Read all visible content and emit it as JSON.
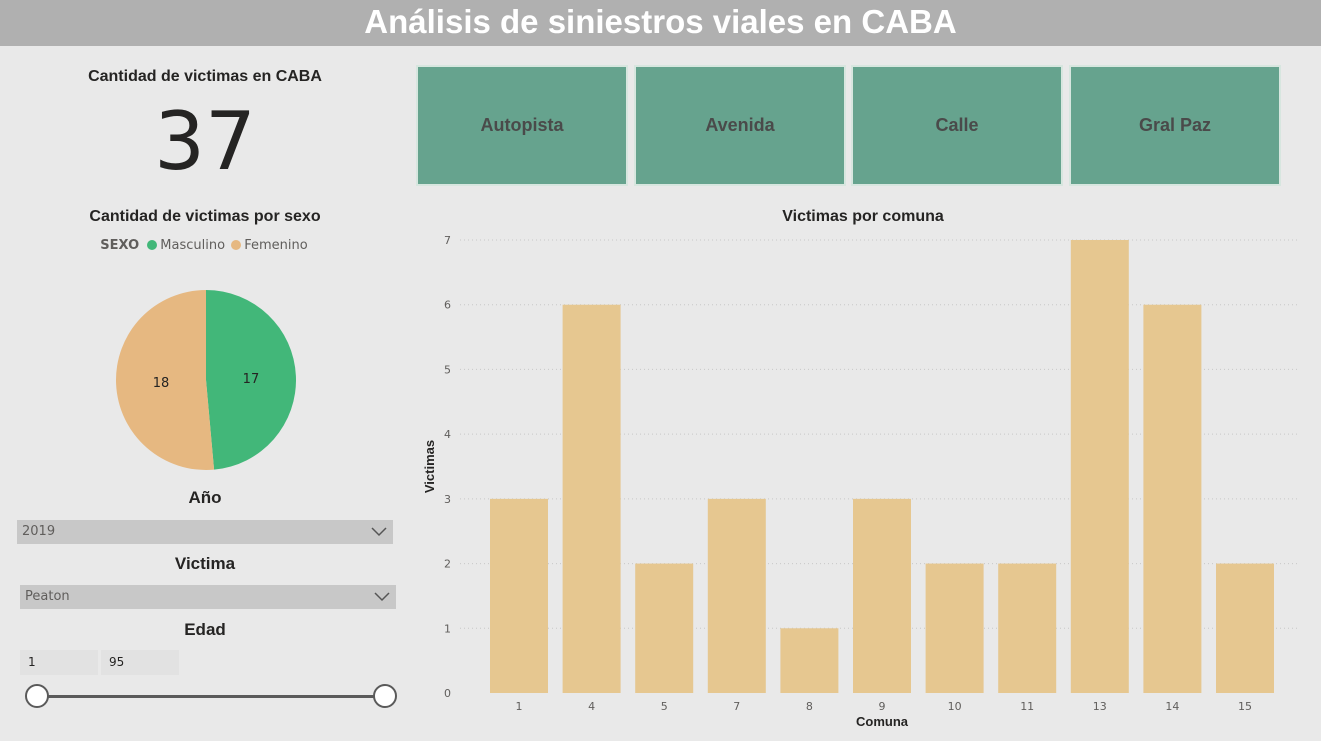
{
  "header": {
    "title": "Análisis de siniestros viales en CABA"
  },
  "kpi": {
    "title": "Cantidad de victimas en CABA",
    "value": "37"
  },
  "pie": {
    "title": "Cantidad de victimas por sexo",
    "legend_title": "SEXO",
    "slices": [
      {
        "name": "Masculino",
        "value": 17,
        "color": "#42b779"
      },
      {
        "name": "Femenino",
        "value": 18,
        "color": "#e6b881"
      }
    ]
  },
  "filters": {
    "year": {
      "title": "Año",
      "selected": "2019"
    },
    "victim": {
      "title": "Victima",
      "selected": "Peaton"
    },
    "age": {
      "title": "Edad",
      "min": "1",
      "max": "95"
    }
  },
  "buttons": [
    "Autopista",
    "Avenida",
    "Calle",
    "Gral Paz"
  ],
  "colors": {
    "button_bg": "#66a38e",
    "bar": "#e6c790",
    "header_bg": "#b0b0b0"
  },
  "icons": {
    "dropdown": "chevron-down-icon"
  },
  "chart_data": {
    "type": "bar",
    "title": "Victimas por comuna",
    "xlabel": "Comuna",
    "ylabel": "Victimas",
    "categories": [
      "1",
      "4",
      "5",
      "7",
      "8",
      "9",
      "10",
      "11",
      "13",
      "14",
      "15"
    ],
    "values": [
      3,
      6,
      2,
      3,
      1,
      3,
      2,
      2,
      7,
      6,
      2
    ],
    "ylim": [
      0,
      7
    ],
    "yticks": [
      0,
      1,
      2,
      3,
      4,
      5,
      6,
      7
    ],
    "grid": true
  }
}
